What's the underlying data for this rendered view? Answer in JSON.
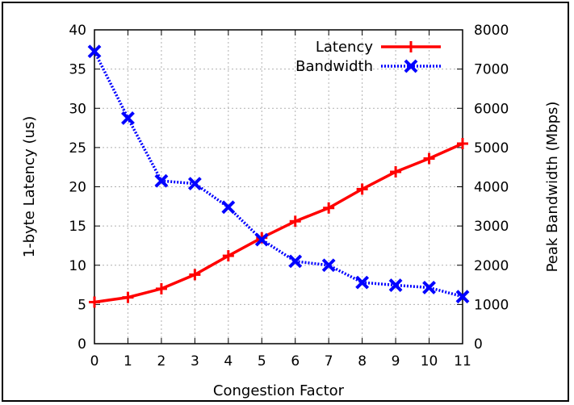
{
  "chart_data": {
    "type": "line",
    "title": "",
    "xlabel": "Congestion Factor",
    "ylabel": "1-byte Latency (us)",
    "y2label": "Peak Bandwidth (Mbps)",
    "x": [
      0,
      1,
      2,
      3,
      4,
      5,
      6,
      7,
      8,
      9,
      10,
      11
    ],
    "xlim": [
      0,
      11
    ],
    "ylim": [
      0,
      40
    ],
    "y2lim": [
      0,
      8000
    ],
    "xticks": [
      "0",
      "1",
      "2",
      "3",
      "4",
      "5",
      "6",
      "7",
      "8",
      "9",
      "10",
      "11"
    ],
    "yticks": [
      "0",
      "5",
      "10",
      "15",
      "20",
      "25",
      "30",
      "35",
      "40"
    ],
    "y2ticks": [
      "0",
      "1000",
      "2000",
      "3000",
      "4000",
      "5000",
      "6000",
      "7000",
      "8000"
    ],
    "grid": true,
    "legend_position": "top-right",
    "series": [
      {
        "name": "Latency",
        "axis": "left",
        "color": "#ff0000",
        "marker": "plus",
        "line": "solid",
        "values": [
          5.3,
          5.9,
          7.0,
          8.8,
          11.2,
          13.5,
          15.6,
          17.3,
          19.7,
          21.9,
          23.6,
          25.5
        ]
      },
      {
        "name": "Bandwidth",
        "axis": "right",
        "color": "#0000ff",
        "marker": "x",
        "line": "dotted",
        "values": [
          7450,
          5750,
          4150,
          4080,
          3480,
          2650,
          2100,
          2000,
          1560,
          1490,
          1430,
          1200
        ]
      }
    ]
  }
}
